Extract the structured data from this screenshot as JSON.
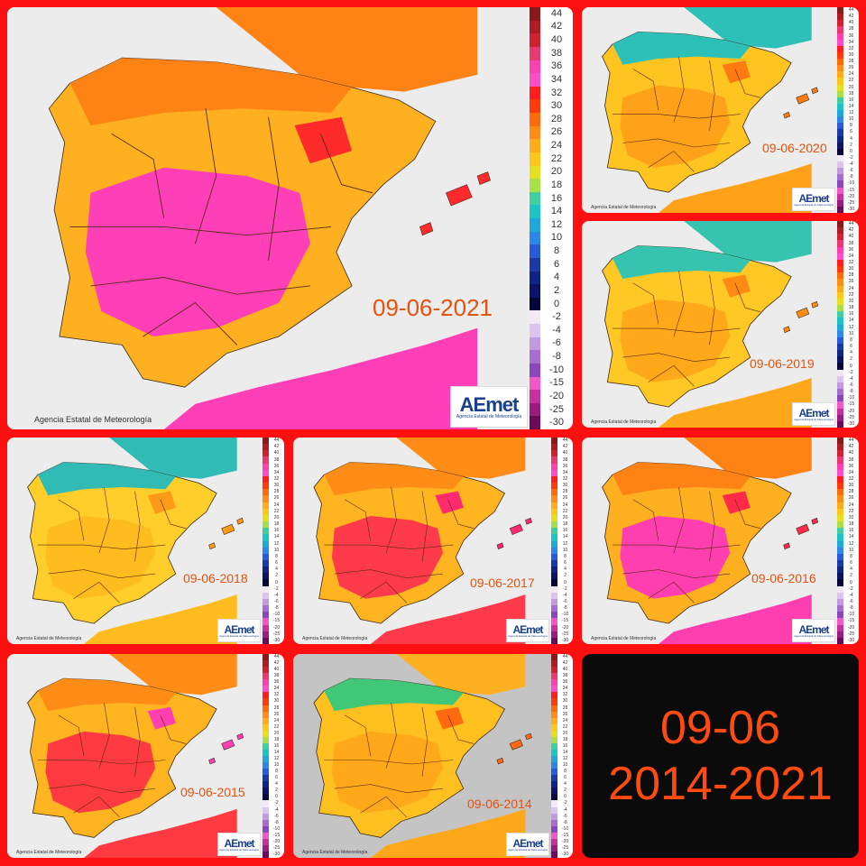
{
  "collage_title": {
    "line1": "09-06",
    "line2": "2014-2021"
  },
  "credit_text": "Agencia Estatal de Meteorología",
  "logo": {
    "word": "AEmet",
    "sub": "Agencia Estatal de Meteorología"
  },
  "legend_values": [
    "44",
    "42",
    "40",
    "38",
    "36",
    "34",
    "32",
    "30",
    "28",
    "26",
    "24",
    "22",
    "20",
    "18",
    "16",
    "14",
    "12",
    "10",
    "8",
    "6",
    "4",
    "2",
    "0",
    "-2",
    "-4",
    "-6",
    "-8",
    "-10",
    "-15",
    "-20",
    "-25",
    "-30"
  ],
  "legend_colors": [
    "#8a1a1a",
    "#b01c24",
    "#d1202f",
    "#e83a70",
    "#ff3fb0",
    "#ff4cc8",
    "#ff1e1e",
    "#ff3a0c",
    "#ff6a0a",
    "#ff8c16",
    "#ffab1a",
    "#ffc61e",
    "#e4e020",
    "#a8e04a",
    "#40d0a0",
    "#1ec4c4",
    "#20a8d8",
    "#2c88e8",
    "#2a5ad8",
    "#1a3aa8",
    "#102488",
    "#0c1468",
    "#06063a",
    "#f2e8f6",
    "#ddc4ee",
    "#c39ae0",
    "#a66ed0",
    "#8c46bc",
    "#f058c8",
    "#c8309e",
    "#9c1c7e",
    "#6a0c5a"
  ],
  "maps": [
    {
      "date": "09-06-2021",
      "interior": "#ff3fb8",
      "north": "#ff8214",
      "coast": "#ffb020",
      "hot": "#ff2a2a",
      "cool": "#36c4b0"
    },
    {
      "date": "09-06-2020",
      "interior": "#ffa21a",
      "north": "#2cc0b8",
      "coast": "#ffc420",
      "hot": "#ff7a10",
      "cool": "#1aa8c0"
    },
    {
      "date": "09-06-2019",
      "interior": "#ffa81a",
      "north": "#36c4b0",
      "coast": "#ffc824",
      "hot": "#ff8a14",
      "cool": "#22b0c4"
    },
    {
      "date": "09-06-2018",
      "interior": "#ffbc1e",
      "north": "#30bcb4",
      "coast": "#ffce2a",
      "hot": "#ff9a18",
      "cool": "#8ad858"
    },
    {
      "date": "09-06-2017",
      "interior": "#ff3a4a",
      "north": "#ff8c16",
      "coast": "#ffb420",
      "hot": "#ff2a70",
      "cool": "#ffcc2a"
    },
    {
      "date": "09-06-2016",
      "interior": "#ff3fb0",
      "north": "#ff8214",
      "coast": "#ffb020",
      "hot": "#ff2a4a",
      "cool": "#ffc020"
    },
    {
      "date": "09-06-2015",
      "interior": "#ff3a40",
      "north": "#ff8c16",
      "coast": "#ffb420",
      "hot": "#ff3fb0",
      "cool": "#36c4b0"
    },
    {
      "date": "09-06-2014",
      "interior": "#ffa81a",
      "north": "#40c878",
      "coast": "#ffc020",
      "hot": "#ff6a10",
      "cool": "#a8e04a"
    }
  ]
}
